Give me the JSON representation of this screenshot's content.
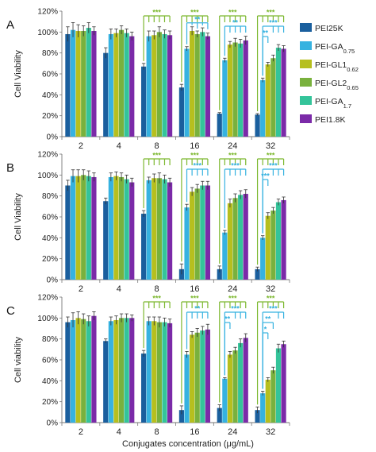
{
  "figure": {
    "xlabel": "Conjugates concentration  (μg/mL)",
    "colors": {
      "PEI25K": "#1a5f9e",
      "PEI-GA0.75": "#36b2e0",
      "PEI-GL1 0.62": "#b6bf1e",
      "PEI-GL2 0.65": "#79b13d",
      "PEI-GA1.7": "#34c49a",
      "PEI1.8K": "#7b2aa8"
    },
    "significance_colors": {
      "vs_PEI25K": "#7cb82f",
      "vs_PEI-GA0.75": "#36b2e0"
    }
  },
  "legend": [
    {
      "base": "PEI25K",
      "sub": ""
    },
    {
      "base": "PEI-GA",
      "sub": "0.75"
    },
    {
      "base": "PEI-GL1",
      "sub": "0.62"
    },
    {
      "base": "PEI-GL2",
      "sub": "0.65"
    },
    {
      "base": "PEI-GA",
      "sub": "1.7"
    },
    {
      "base": "PEI1.8K",
      "sub": ""
    }
  ],
  "chart_data": [
    {
      "type": "bar",
      "panel": "A",
      "ylabel": "Cell Viability",
      "ylim": [
        0,
        120
      ],
      "yticks": [
        "0%",
        "20%",
        "40%",
        "60%",
        "80%",
        "100%",
        "120%"
      ],
      "categories": [
        "2",
        "4",
        "8",
        "16",
        "24",
        "32"
      ],
      "series": [
        {
          "name": "PEI25K",
          "values": [
            98,
            80,
            67,
            47,
            22,
            21
          ],
          "errors": [
            7,
            5,
            3,
            3,
            1,
            1
          ]
        },
        {
          "name": "PEI-GA0.75",
          "values": [
            102,
            98,
            96,
            84,
            73,
            54
          ],
          "errors": [
            7,
            5,
            5,
            2,
            2,
            2
          ]
        },
        {
          "name": "PEI-GL1 0.62",
          "values": [
            101,
            99,
            97,
            101,
            88,
            69
          ],
          "errors": [
            6,
            4,
            4,
            4,
            3,
            2
          ]
        },
        {
          "name": "PEI-GL2 0.65",
          "values": [
            101,
            102,
            100,
            98,
            90,
            75
          ],
          "errors": [
            5,
            4,
            5,
            3,
            4,
            3
          ]
        },
        {
          "name": "PEI-GA1.7",
          "values": [
            104,
            99,
            98,
            100,
            89,
            85
          ],
          "errors": [
            5,
            4,
            4,
            4,
            4,
            3
          ]
        },
        {
          "name": "PEI1.8K",
          "values": [
            101,
            96,
            97,
            96,
            92,
            84
          ],
          "errors": [
            4,
            4,
            4,
            3,
            4,
            3
          ]
        }
      ],
      "significance": [
        {
          "category": 2,
          "from": 0,
          "to": [
            1,
            2,
            3,
            4,
            5
          ],
          "label": "***",
          "color": "green"
        },
        {
          "category": 3,
          "from": 0,
          "to": [
            1,
            2,
            3,
            4,
            5
          ],
          "label": "***",
          "color": "green"
        },
        {
          "category": 3,
          "from": 1,
          "to": [
            2,
            3,
            4,
            5
          ],
          "label": "**",
          "color": "blue"
        },
        {
          "category": 4,
          "from": 0,
          "to": [
            1,
            2,
            3,
            4,
            5
          ],
          "label": "***",
          "color": "green"
        },
        {
          "category": 4,
          "from": 1,
          "to": [
            2,
            3,
            4,
            5
          ],
          "label": "**",
          "color": "blue"
        },
        {
          "category": 5,
          "from": 0,
          "to": [
            1,
            2,
            3,
            4,
            5
          ],
          "label": "***",
          "color": "green"
        },
        {
          "category": 5,
          "from": 1,
          "to": [
            3,
            4,
            5
          ],
          "label": "***",
          "color": "blue"
        },
        {
          "category": 5,
          "from": 1,
          "to": [
            2
          ],
          "label": "**",
          "color": "blue"
        }
      ]
    },
    {
      "type": "bar",
      "panel": "B",
      "ylabel": "Cell Viability",
      "ylim": [
        0,
        120
      ],
      "yticks": [
        "0%",
        "20%",
        "40%",
        "60%",
        "80%",
        "100%",
        "120%"
      ],
      "categories": [
        "2",
        "4",
        "8",
        "16",
        "24",
        "32"
      ],
      "series": [
        {
          "name": "PEI25K",
          "values": [
            90,
            75,
            63,
            10,
            10,
            10
          ],
          "errors": [
            5,
            3,
            3,
            5,
            3,
            2
          ]
        },
        {
          "name": "PEI-GA0.75",
          "values": [
            99,
            98,
            95,
            69,
            45,
            40
          ],
          "errors": [
            6,
            4,
            3,
            3,
            2,
            2
          ]
        },
        {
          "name": "PEI-GL1 0.62",
          "values": [
            99,
            99,
            97,
            84,
            73,
            61
          ],
          "errors": [
            6,
            4,
            4,
            4,
            4,
            3
          ]
        },
        {
          "name": "PEI-GL2 0.65",
          "values": [
            100,
            98,
            97,
            87,
            78,
            66
          ],
          "errors": [
            5,
            4,
            5,
            4,
            4,
            3
          ]
        },
        {
          "name": "PEI-GA1.7",
          "values": [
            99,
            96,
            96,
            90,
            81,
            74
          ],
          "errors": [
            5,
            4,
            4,
            4,
            4,
            3
          ]
        },
        {
          "name": "PEI1.8K",
          "values": [
            98,
            93,
            93,
            90,
            82,
            76
          ],
          "errors": [
            4,
            4,
            4,
            4,
            4,
            3
          ]
        }
      ],
      "significance": [
        {
          "category": 2,
          "from": 0,
          "to": [
            1,
            2,
            3,
            4,
            5
          ],
          "label": "***",
          "color": "green"
        },
        {
          "category": 3,
          "from": 0,
          "to": [
            1,
            2,
            3,
            4,
            5
          ],
          "label": "***",
          "color": "green"
        },
        {
          "category": 3,
          "from": 1,
          "to": [
            2,
            3,
            4,
            5
          ],
          "label": "***",
          "color": "blue"
        },
        {
          "category": 4,
          "from": 0,
          "to": [
            1,
            2,
            3,
            4,
            5
          ],
          "label": "***",
          "color": "green"
        },
        {
          "category": 4,
          "from": 1,
          "to": [
            2,
            3,
            4,
            5
          ],
          "label": "***",
          "color": "blue"
        },
        {
          "category": 5,
          "from": 0,
          "to": [
            1,
            2,
            3,
            4,
            5
          ],
          "label": "***",
          "color": "green"
        },
        {
          "category": 5,
          "from": 1,
          "to": [
            3,
            4,
            5
          ],
          "label": "***",
          "color": "blue"
        },
        {
          "category": 5,
          "from": 1,
          "to": [
            2
          ],
          "label": "***",
          "color": "blue"
        }
      ]
    },
    {
      "type": "bar",
      "panel": "C",
      "ylabel": "Cell viability",
      "ylim": [
        0,
        120
      ],
      "yticks": [
        "0%",
        "20%",
        "40%",
        "60%",
        "80%",
        "100%",
        "120%"
      ],
      "categories": [
        "2",
        "4",
        "8",
        "16",
        "24",
        "32"
      ],
      "series": [
        {
          "name": "PEI25K",
          "values": [
            96,
            78,
            66,
            12,
            14,
            12
          ],
          "errors": [
            5,
            2,
            3,
            4,
            3,
            3
          ]
        },
        {
          "name": "PEI-GA0.75",
          "values": [
            98,
            97,
            97,
            65,
            42,
            28
          ],
          "errors": [
            7,
            4,
            4,
            3,
            1,
            2
          ]
        },
        {
          "name": "PEI-GL1 0.62",
          "values": [
            100,
            98,
            97,
            84,
            65,
            41
          ],
          "errors": [
            6,
            4,
            4,
            3,
            3,
            2
          ]
        },
        {
          "name": "PEI-GL2 0.65",
          "values": [
            99,
            100,
            96,
            86,
            69,
            50
          ],
          "errors": [
            5,
            4,
            5,
            4,
            3,
            3
          ]
        },
        {
          "name": "PEI-GA1.7",
          "values": [
            97,
            100,
            96,
            88,
            76,
            71
          ],
          "errors": [
            5,
            4,
            4,
            4,
            4,
            4
          ]
        },
        {
          "name": "PEI1.8K",
          "values": [
            102,
            100,
            95,
            89,
            81,
            75
          ],
          "errors": [
            4,
            3,
            4,
            5,
            4,
            3
          ]
        }
      ],
      "significance": [
        {
          "category": 2,
          "from": 0,
          "to": [
            1,
            2,
            3,
            4,
            5
          ],
          "label": "***",
          "color": "green"
        },
        {
          "category": 3,
          "from": 0,
          "to": [
            1,
            2,
            3,
            4,
            5
          ],
          "label": "***",
          "color": "green"
        },
        {
          "category": 3,
          "from": 1,
          "to": [
            2,
            3,
            4,
            5
          ],
          "label": "**",
          "color": "blue"
        },
        {
          "category": 4,
          "from": 0,
          "to": [
            1,
            2,
            3,
            4,
            5
          ],
          "label": "***",
          "color": "green"
        },
        {
          "category": 4,
          "from": 1,
          "to": [
            3,
            4,
            5
          ],
          "label": "***",
          "color": "blue"
        },
        {
          "category": 4,
          "from": 1,
          "to": [
            2
          ],
          "label": "**",
          "color": "blue"
        },
        {
          "category": 5,
          "from": 0,
          "to": [
            1,
            2,
            3,
            4,
            5
          ],
          "label": "***",
          "color": "green"
        },
        {
          "category": 5,
          "from": 1,
          "to": [
            4,
            5
          ],
          "label": "***",
          "color": "blue"
        },
        {
          "category": 5,
          "from": 1,
          "to": [
            3
          ],
          "label": "**",
          "color": "blue"
        },
        {
          "category": 5,
          "from": 1,
          "to": [
            2
          ],
          "label": "*",
          "color": "blue"
        }
      ]
    }
  ]
}
